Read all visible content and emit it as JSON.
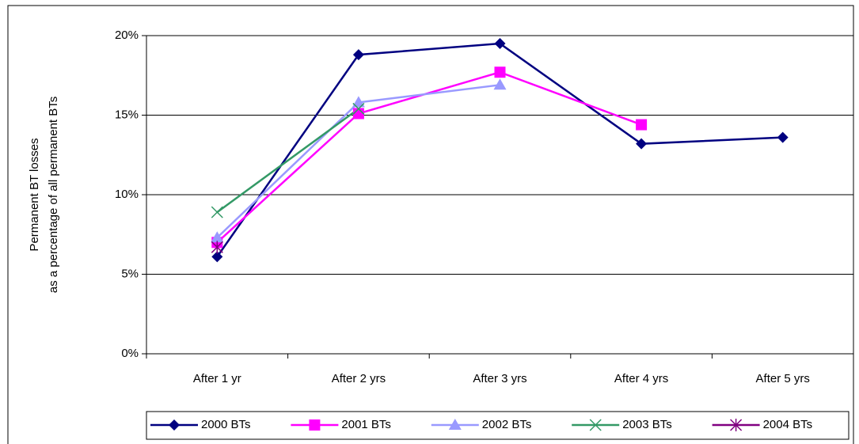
{
  "chart_data": {
    "type": "line",
    "y_label": [
      "Permanent BT losses",
      "as a percentage of all permanent BTs"
    ],
    "categories": [
      "After 1 yr",
      "After 2 yrs",
      "After 3 yrs",
      "After 4 yrs",
      "After 5 yrs"
    ],
    "series": [
      {
        "name": "2000 BTs",
        "color": "#000080",
        "marker": "diamond",
        "values": [
          6.1,
          18.8,
          19.5,
          13.2,
          13.6
        ]
      },
      {
        "name": "2001 BTs",
        "color": "#ff00ff",
        "marker": "square",
        "values": [
          7.0,
          15.1,
          17.7,
          14.4,
          null
        ]
      },
      {
        "name": "2002 BTs",
        "color": "#9999ff",
        "marker": "triangle",
        "values": [
          7.3,
          15.8,
          16.9,
          null,
          null
        ]
      },
      {
        "name": "2003 BTs",
        "color": "#339966",
        "marker": "x",
        "values": [
          8.9,
          15.4,
          null,
          null,
          null
        ]
      },
      {
        "name": "2004 BTs",
        "color": "#800080",
        "marker": "star",
        "values": [
          6.7,
          null,
          null,
          null,
          null
        ]
      }
    ],
    "ylim": [
      0,
      20
    ],
    "yticks": [
      {
        "value": 0,
        "label": "0%"
      },
      {
        "value": 5,
        "label": "5%"
      },
      {
        "value": 10,
        "label": "10%"
      },
      {
        "value": 15,
        "label": "15%"
      },
      {
        "value": 20,
        "label": "20%"
      }
    ],
    "grid": true,
    "legend": "bottom"
  }
}
